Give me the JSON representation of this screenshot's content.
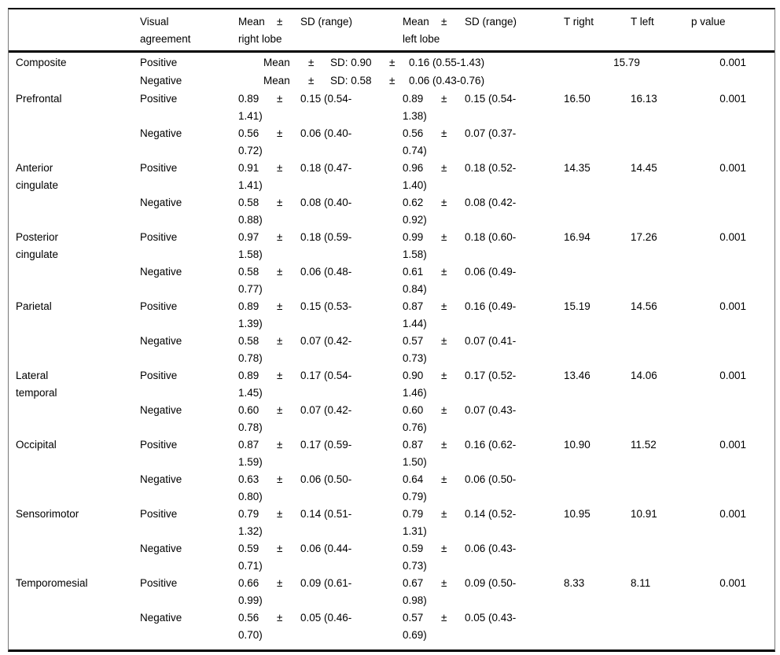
{
  "table": {
    "header": {
      "agreement": "Visual agreement",
      "mean_label": "Mean",
      "pm": "±",
      "sd_label": "SD (range)",
      "right_sub": "right lobe",
      "left_sub": "left lobe",
      "t_right": "T right",
      "t_left": "T left",
      "p_value": "p value"
    },
    "groups": [
      {
        "region": "Composite",
        "merged": true,
        "rows": [
          {
            "agreement": "Positive",
            "mean_label": "Mean",
            "pm1": "±",
            "sd": "SD: 0.90",
            "pm2": "±",
            "range": "0.16 (0.55-1.43)",
            "t": "15.79",
            "p": "0.001"
          },
          {
            "agreement": "Negative",
            "mean_label": "Mean",
            "pm1": "±",
            "sd": "SD: 0.58",
            "pm2": "±",
            "range": "0.06 (0.43-0.76)",
            "t": "",
            "p": ""
          }
        ]
      },
      {
        "region": "Prefrontal",
        "rows": [
          {
            "agreement": "Positive",
            "right": {
              "mean": "0.89",
              "pm": "±",
              "sd1": "0.15 (0.54-",
              "sd2": "1.41)"
            },
            "left": {
              "mean": "0.89",
              "pm": "±",
              "sd1": "0.15 (0.54-",
              "sd2": "1.38)"
            },
            "t_right": "16.50",
            "t_left": "16.13",
            "p": "0.001"
          },
          {
            "agreement": "Negative",
            "right": {
              "mean": "0.56",
              "pm": "±",
              "sd1": "0.06 (0.40-",
              "sd2": "0.72)"
            },
            "left": {
              "mean": "0.56",
              "pm": "±",
              "sd1": "0.07 (0.37-",
              "sd2": "0.74)"
            },
            "t_right": "",
            "t_left": "",
            "p": ""
          }
        ]
      },
      {
        "region": "Anterior cingulate",
        "rows": [
          {
            "agreement": "Positive",
            "right": {
              "mean": "0.91",
              "pm": "±",
              "sd1": "0.18 (0.47-",
              "sd2": "1.41)"
            },
            "left": {
              "mean": "0.96",
              "pm": "±",
              "sd1": "0.18 (0.52-",
              "sd2": "1.40)"
            },
            "t_right": "14.35",
            "t_left": "14.45",
            "p": "0.001"
          },
          {
            "agreement": "Negative",
            "right": {
              "mean": "0.58",
              "pm": "±",
              "sd1": "0.08 (0.40-",
              "sd2": "0.88)"
            },
            "left": {
              "mean": "0.62",
              "pm": "±",
              "sd1": "0.08 (0.42-",
              "sd2": "0.92)"
            },
            "t_right": "",
            "t_left": "",
            "p": ""
          }
        ]
      },
      {
        "region": "Posterior cingulate",
        "rows": [
          {
            "agreement": "Positive",
            "right": {
              "mean": "0.97",
              "pm": "±",
              "sd1": "0.18 (0.59-",
              "sd2": "1.58)"
            },
            "left": {
              "mean": "0.99",
              "pm": "±",
              "sd1": "0.18 (0.60-",
              "sd2": "1.58)"
            },
            "t_right": "16.94",
            "t_left": "17.26",
            "p": "0.001"
          },
          {
            "agreement": "Negative",
            "right": {
              "mean": "0.58",
              "pm": "±",
              "sd1": "0.06 (0.48-",
              "sd2": "0.77)"
            },
            "left": {
              "mean": "0.61",
              "pm": "±",
              "sd1": "0.06 (0.49-",
              "sd2": "0.84)"
            },
            "t_right": "",
            "t_left": "",
            "p": ""
          }
        ]
      },
      {
        "region": "Parietal",
        "rows": [
          {
            "agreement": "Positive",
            "right": {
              "mean": "0.89",
              "pm": "±",
              "sd1": "0.15 (0.53-",
              "sd2": "1.39)"
            },
            "left": {
              "mean": "0.87",
              "pm": "±",
              "sd1": "0.16 (0.49-",
              "sd2": "1.44)"
            },
            "t_right": "15.19",
            "t_left": "14.56",
            "p": "0.001"
          },
          {
            "agreement": "Negative",
            "right": {
              "mean": "0.58",
              "pm": "±",
              "sd1": "0.07 (0.42-",
              "sd2": "0.78)"
            },
            "left": {
              "mean": "0.57",
              "pm": "±",
              "sd1": "0.07 (0.41-",
              "sd2": "0.73)"
            },
            "t_right": "",
            "t_left": "",
            "p": ""
          }
        ]
      },
      {
        "region": "Lateral temporal",
        "rows": [
          {
            "agreement": "Positive",
            "right": {
              "mean": "0.89",
              "pm": "±",
              "sd1": "0.17 (0.54-",
              "sd2": "1.45)"
            },
            "left": {
              "mean": "0.90",
              "pm": "±",
              "sd1": "0.17 (0.52-",
              "sd2": "1.46)"
            },
            "t_right": "13.46",
            "t_left": "14.06",
            "p": "0.001"
          },
          {
            "agreement": "Negative",
            "right": {
              "mean": "0.60",
              "pm": "±",
              "sd1": "0.07 (0.42-",
              "sd2": "0.78)"
            },
            "left": {
              "mean": "0.60",
              "pm": "±",
              "sd1": "0.07 (0.43-",
              "sd2": "0.76)"
            },
            "t_right": "",
            "t_left": "",
            "p": ""
          }
        ]
      },
      {
        "region": "Occipital",
        "rows": [
          {
            "agreement": "Positive",
            "right": {
              "mean": "0.87",
              "pm": "±",
              "sd1": "0.17 (0.59-",
              "sd2": "1.59)"
            },
            "left": {
              "mean": "0.87",
              "pm": "±",
              "sd1": "0.16 (0.62-",
              "sd2": "1.50)"
            },
            "t_right": "10.90",
            "t_left": "11.52",
            "p": "0.001"
          },
          {
            "agreement": "Negative",
            "right": {
              "mean": "0.63",
              "pm": "±",
              "sd1": "0.06 (0.50-",
              "sd2": "0.80)"
            },
            "left": {
              "mean": "0.64",
              "pm": "±",
              "sd1": "0.06 (0.50-",
              "sd2": "0.79)"
            },
            "t_right": "",
            "t_left": "",
            "p": ""
          }
        ]
      },
      {
        "region": "Sensorimotor",
        "rows": [
          {
            "agreement": "Positive",
            "right": {
              "mean": "0.79",
              "pm": "±",
              "sd1": "0.14 (0.51-",
              "sd2": "1.32)"
            },
            "left": {
              "mean": "0.79",
              "pm": "±",
              "sd1": "0.14 (0.52-",
              "sd2": "1.31)"
            },
            "t_right": "10.95",
            "t_left": "10.91",
            "p": "0.001"
          },
          {
            "agreement": "Negative",
            "right": {
              "mean": "0.59",
              "pm": "±",
              "sd1": "0.06 (0.44-",
              "sd2": "0.71)"
            },
            "left": {
              "mean": "0.59",
              "pm": "±",
              "sd1": "0.06 (0.43-",
              "sd2": "0.73)"
            },
            "t_right": "",
            "t_left": "",
            "p": ""
          }
        ]
      },
      {
        "region": "Temporomesial",
        "rows": [
          {
            "agreement": "Positive",
            "right": {
              "mean": "0.66",
              "pm": "±",
              "sd1": "0.09 (0.61-",
              "sd2": "0.99)"
            },
            "left": {
              "mean": "0.67",
              "pm": "±",
              "sd1": "0.09 (0.50-",
              "sd2": "0.98)"
            },
            "t_right": "8.33",
            "t_left": "8.11",
            "p": "0.001"
          },
          {
            "agreement": "Negative",
            "right": {
              "mean": "0.56",
              "pm": "±",
              "sd1": "0.05 (0.46-",
              "sd2": "0.70)"
            },
            "left": {
              "mean": "0.57",
              "pm": "±",
              "sd1": "0.05 (0.43-",
              "sd2": "0.69)"
            },
            "t_right": "",
            "t_left": "",
            "p": ""
          }
        ]
      }
    ]
  }
}
